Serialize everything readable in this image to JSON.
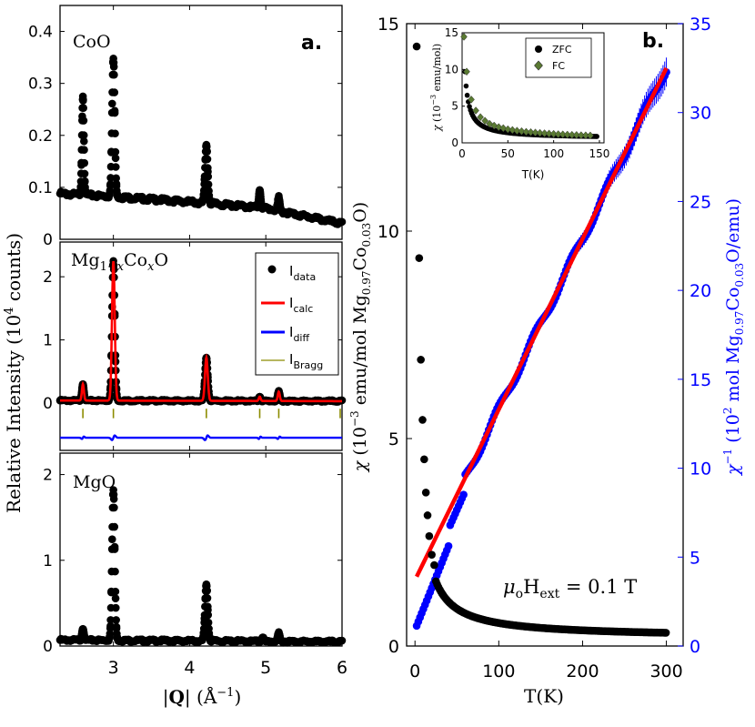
{
  "figure": {
    "panel_a_letter": "a.",
    "panel_b_letter": "b.",
    "left_ylabel": "Relative Intensity (10⁴ counts)",
    "left_xlabel": "|Q| (Å⁻¹)",
    "right_xlabel": "T(K)",
    "right_ylabel_left": "χ (10⁻³ emu/mol Mg0.97Co0.03O)",
    "right_ylabel_right": "χ⁻¹ (10² mol Mg0.97Co0.03O/emu)",
    "field_annotation": "μ₀H_ext = 0.1 T"
  },
  "colors": {
    "data": "#000000",
    "calc": "#ff0000",
    "diff": "#0000ff",
    "bragg": "#8c8c00",
    "inverse": "#0000ff",
    "fit": "#ff0000",
    "fc_marker": "#5a7a32"
  },
  "chart_data": [
    {
      "id": "coo",
      "type": "line",
      "panel_label": "CoO",
      "xlim": [
        2.3,
        6.0
      ],
      "ylim": [
        0,
        0.45
      ],
      "yticks": [
        "0",
        "0.1",
        "0.2",
        "0.3",
        "0.4"
      ],
      "ytick_values": [
        0,
        0.1,
        0.2,
        0.3,
        0.4
      ],
      "background": [
        [
          2.3,
          0.088
        ],
        [
          3.0,
          0.082
        ],
        [
          4.0,
          0.072
        ],
        [
          5.0,
          0.06
        ],
        [
          5.5,
          0.045
        ],
        [
          6.0,
          0.03
        ]
      ],
      "peaks": [
        {
          "x": 2.6,
          "h": 0.275
        },
        {
          "x": 3.0,
          "h": 0.348
        },
        {
          "x": 4.22,
          "h": 0.182
        },
        {
          "x": 4.92,
          "h": 0.095
        },
        {
          "x": 5.17,
          "h": 0.08
        }
      ]
    },
    {
      "id": "mgcoo",
      "type": "line",
      "panel_label": "Mg1−xCoxO",
      "xlim": [
        2.3,
        6.0
      ],
      "ylim": [
        -0.75,
        2.55
      ],
      "yticks": [
        "0",
        "1",
        "2"
      ],
      "ytick_values": [
        0,
        1,
        2
      ],
      "background": [
        [
          2.3,
          0.04
        ],
        [
          6.0,
          0.03
        ]
      ],
      "peaks": [
        {
          "x": 2.6,
          "h": 0.3
        },
        {
          "x": 3.0,
          "h": 2.25
        },
        {
          "x": 4.22,
          "h": 0.72
        },
        {
          "x": 4.92,
          "h": 0.1
        },
        {
          "x": 5.17,
          "h": 0.18
        }
      ],
      "diff_offset": -0.55,
      "bragg_ticks": [
        2.6,
        3.0,
        4.22,
        4.92,
        5.17,
        6.0
      ],
      "bragg_offset": -0.12,
      "legend": [
        "Idata",
        "Icalc",
        "Idiff",
        "IBragg"
      ]
    },
    {
      "id": "mgo",
      "type": "line",
      "panel_label": "MgO",
      "xlim": [
        2.3,
        6.0
      ],
      "ylim": [
        0,
        2.25
      ],
      "yticks": [
        "0",
        "1",
        "2"
      ],
      "ytick_values": [
        0,
        1,
        2
      ],
      "xticks": [
        "3",
        "4",
        "5",
        "6"
      ],
      "xtick_values": [
        3,
        4,
        5,
        6
      ],
      "background": [
        [
          2.3,
          0.07
        ],
        [
          6.0,
          0.05
        ]
      ],
      "peaks": [
        {
          "x": 2.6,
          "h": 0.2
        },
        {
          "x": 3.0,
          "h": 1.82
        },
        {
          "x": 4.22,
          "h": 0.72
        },
        {
          "x": 4.96,
          "h": 0.1
        },
        {
          "x": 5.17,
          "h": 0.15
        }
      ]
    },
    {
      "id": "susceptibility",
      "type": "scatter",
      "xlim": [
        -10,
        320
      ],
      "ylim_left": [
        0,
        15
      ],
      "ylim_right": [
        0,
        35
      ],
      "xticks": [
        "0",
        "100",
        "200",
        "300"
      ],
      "xtick_values": [
        0,
        100,
        200,
        300
      ],
      "yticks_left": [
        "0",
        "5",
        "10",
        "15"
      ],
      "ytick_values_left": [
        0,
        5,
        10,
        15
      ],
      "yticks_right": [
        "0",
        "5",
        "10",
        "15",
        "20",
        "25",
        "30",
        "35"
      ],
      "ytick_values_right": [
        0,
        5,
        10,
        15,
        20,
        25,
        30,
        35
      ],
      "chi_model": {
        "C": 0.09,
        "theta": -3.6,
        "chi0": 1e-05,
        "unit_scale": 1000
      },
      "chi_low_T_points": [
        [
          2,
          14.45
        ],
        [
          5,
          9.35
        ],
        [
          7,
          6.9
        ],
        [
          9,
          5.45
        ],
        [
          11,
          4.5
        ],
        [
          13,
          3.7
        ],
        [
          15,
          3.15
        ],
        [
          17,
          2.65
        ],
        [
          20,
          2.2
        ],
        [
          23,
          1.95
        ]
      ],
      "inverse_fit": {
        "x": [
          2,
          300
        ],
        "y": [
          3.9,
          32.5
        ],
        "name": "fit"
      },
      "inverse_points": {
        "T_start": 2,
        "T_end": 300,
        "step": 2
      },
      "inverse_errorbars_from_T": 150
    },
    {
      "id": "inset",
      "type": "scatter",
      "xlim": [
        0,
        155
      ],
      "ylim": [
        0,
        15
      ],
      "xticks": [
        "0",
        "50",
        "100",
        "150"
      ],
      "xtick_values": [
        0,
        50,
        100,
        150
      ],
      "yticks": [
        "0",
        "5",
        "10",
        "15"
      ],
      "ytick_values": [
        0,
        5,
        10,
        15
      ],
      "xlabel": "T(K)",
      "ylabel": "χ (10⁻³ emu/mol)",
      "legend": [
        "ZFC",
        "FC"
      ],
      "fc_points": [
        [
          2,
          14.45
        ],
        [
          5,
          9.7
        ],
        [
          10,
          5.9
        ],
        [
          15,
          4.4
        ],
        [
          20,
          3.5
        ],
        [
          25,
          3.0
        ],
        [
          30,
          2.6
        ],
        [
          35,
          2.35
        ],
        [
          40,
          2.15
        ],
        [
          45,
          2.0
        ],
        [
          50,
          1.85
        ],
        [
          55,
          1.75
        ],
        [
          60,
          1.65
        ],
        [
          65,
          1.58
        ],
        [
          70,
          1.5
        ],
        [
          75,
          1.45
        ],
        [
          80,
          1.4
        ],
        [
          85,
          1.35
        ],
        [
          90,
          1.3
        ],
        [
          95,
          1.26
        ],
        [
          100,
          1.22
        ],
        [
          105,
          1.18
        ],
        [
          110,
          1.15
        ],
        [
          115,
          1.12
        ],
        [
          120,
          1.09
        ],
        [
          125,
          1.07
        ],
        [
          130,
          1.04
        ],
        [
          135,
          1.02
        ],
        [
          140,
          1.0
        ]
      ]
    }
  ]
}
